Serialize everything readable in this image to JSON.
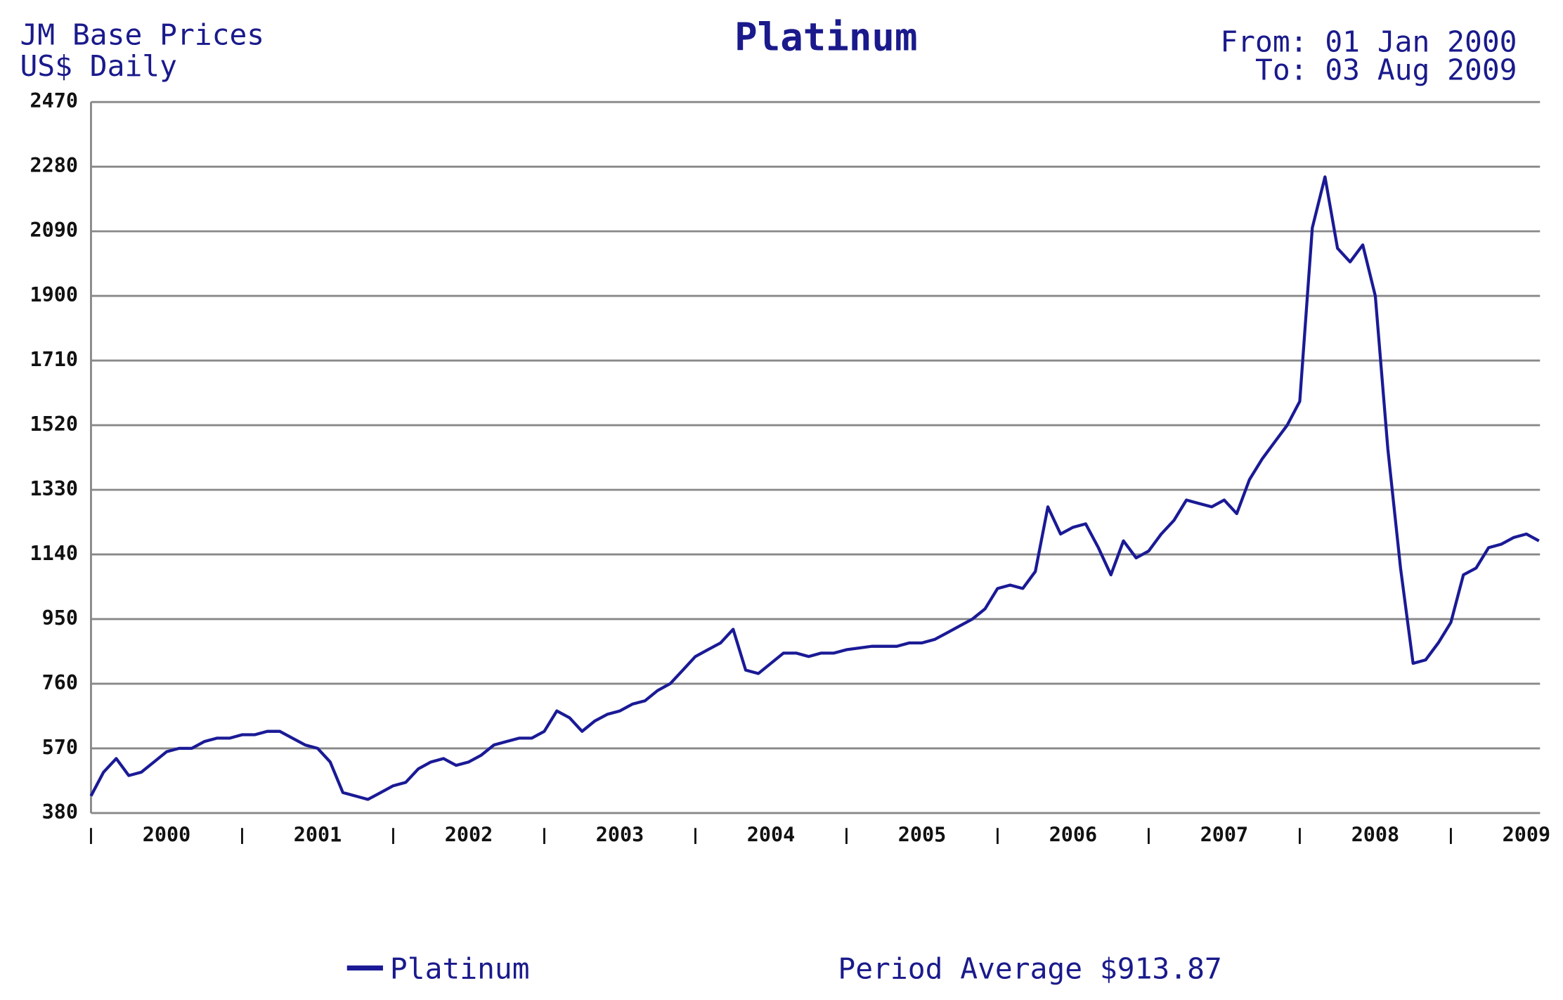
{
  "chart_data": {
    "type": "line",
    "title": "Platinum",
    "subtitle_lines": [
      "JM Base Prices",
      "US$ Daily"
    ],
    "date_range": [
      "From: 01 Jan 2000",
      "To: 03 Aug 2009"
    ],
    "annotation": "Period Average $913.87",
    "x": [
      2000,
      2000.083,
      2000.167,
      2000.25,
      2000.333,
      2000.417,
      2000.5,
      2000.583,
      2000.667,
      2000.75,
      2000.833,
      2000.917,
      2001,
      2001.083,
      2001.167,
      2001.25,
      2001.333,
      2001.417,
      2001.5,
      2001.583,
      2001.667,
      2001.75,
      2001.833,
      2001.917,
      2002,
      2002.083,
      2002.167,
      2002.25,
      2002.333,
      2002.417,
      2002.5,
      2002.583,
      2002.667,
      2002.75,
      2002.833,
      2002.917,
      2003,
      2003.083,
      2003.167,
      2003.25,
      2003.333,
      2003.417,
      2003.5,
      2003.583,
      2003.667,
      2003.75,
      2003.833,
      2003.917,
      2004,
      2004.083,
      2004.167,
      2004.25,
      2004.333,
      2004.417,
      2004.5,
      2004.583,
      2004.667,
      2004.75,
      2004.833,
      2004.917,
      2005,
      2005.083,
      2005.167,
      2005.25,
      2005.333,
      2005.417,
      2005.5,
      2005.583,
      2005.667,
      2005.75,
      2005.833,
      2005.917,
      2006,
      2006.083,
      2006.167,
      2006.25,
      2006.333,
      2006.417,
      2006.5,
      2006.583,
      2006.667,
      2006.75,
      2006.833,
      2006.917,
      2007,
      2007.083,
      2007.167,
      2007.25,
      2007.333,
      2007.417,
      2007.5,
      2007.583,
      2007.667,
      2007.75,
      2007.833,
      2007.917,
      2008,
      2008.083,
      2008.167,
      2008.25,
      2008.333,
      2008.417,
      2008.5,
      2008.583,
      2008.667,
      2008.75,
      2008.833,
      2008.917,
      2009,
      2009.083,
      2009.167,
      2009.25,
      2009.333,
      2009.417,
      2009.5,
      2009.583
    ],
    "series": [
      {
        "name": "Platinum",
        "color": "#1a1a96",
        "values": [
          430,
          500,
          540,
          490,
          500,
          530,
          560,
          570,
          570,
          590,
          600,
          600,
          610,
          610,
          620,
          620,
          600,
          580,
          570,
          530,
          440,
          430,
          420,
          440,
          460,
          470,
          510,
          530,
          540,
          520,
          530,
          550,
          580,
          590,
          600,
          600,
          620,
          680,
          660,
          620,
          650,
          670,
          680,
          700,
          710,
          740,
          760,
          800,
          840,
          860,
          880,
          920,
          800,
          790,
          820,
          850,
          850,
          840,
          850,
          850,
          860,
          865,
          870,
          870,
          870,
          880,
          880,
          890,
          910,
          930,
          950,
          980,
          1040,
          1050,
          1040,
          1090,
          1280,
          1200,
          1220,
          1230,
          1160,
          1080,
          1180,
          1130,
          1150,
          1200,
          1240,
          1300,
          1290,
          1280,
          1300,
          1260,
          1360,
          1420,
          1470,
          1520,
          1590,
          2100,
          2250,
          2040,
          2000,
          2050,
          1900,
          1450,
          1100,
          820,
          830,
          880,
          940,
          1080,
          1100,
          1160,
          1170,
          1190,
          1200,
          1180
        ]
      }
    ],
    "xlim": [
      2000,
      2009.59
    ],
    "xticks": [
      {
        "value": 2000.5,
        "label": "2000"
      },
      {
        "value": 2001.5,
        "label": "2001"
      },
      {
        "value": 2002.5,
        "label": "2002"
      },
      {
        "value": 2003.5,
        "label": "2003"
      },
      {
        "value": 2004.5,
        "label": "2004"
      },
      {
        "value": 2005.5,
        "label": "2005"
      },
      {
        "value": 2006.5,
        "label": "2006"
      },
      {
        "value": 2007.5,
        "label": "2007"
      },
      {
        "value": 2008.5,
        "label": "2008"
      },
      {
        "value": 2009.5,
        "label": "2009"
      }
    ],
    "x_tick_marks": [
      2000,
      2001,
      2002,
      2003,
      2004,
      2005,
      2006,
      2007,
      2008,
      2009
    ],
    "ylim": [
      380,
      2470
    ],
    "yticks": [
      380,
      570,
      760,
      950,
      1140,
      1330,
      1520,
      1710,
      1900,
      2090,
      2280,
      2470
    ],
    "grid": true
  }
}
